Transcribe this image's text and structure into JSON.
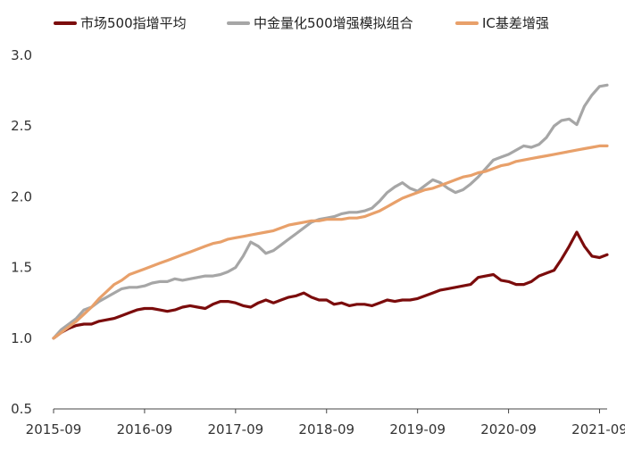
{
  "chart_data": {
    "type": "line",
    "title": "",
    "xlabel": "",
    "ylabel": "",
    "ylim": [
      0.5,
      3.0
    ],
    "yticks": [
      "0.5",
      "1.0",
      "1.5",
      "2.0",
      "2.5",
      "3.0"
    ],
    "xlim": [
      "2015-09",
      "2021-10"
    ],
    "xticks": [
      "2015-09",
      "2016-09",
      "2017-09",
      "2018-09",
      "2019-09",
      "2020-09",
      "2021-09"
    ],
    "grid": false,
    "legend": "top",
    "series": [
      {
        "name": "市场500指增平均",
        "color": "#7b0c0c",
        "points": [
          [
            "2015-09",
            1.0
          ],
          [
            "2015-10",
            1.04
          ],
          [
            "2015-11",
            1.07
          ],
          [
            "2015-12",
            1.09
          ],
          [
            "2016-01",
            1.1
          ],
          [
            "2016-02",
            1.1
          ],
          [
            "2016-03",
            1.12
          ],
          [
            "2016-04",
            1.13
          ],
          [
            "2016-05",
            1.14
          ],
          [
            "2016-06",
            1.16
          ],
          [
            "2016-07",
            1.18
          ],
          [
            "2016-08",
            1.2
          ],
          [
            "2016-09",
            1.21
          ],
          [
            "2016-10",
            1.21
          ],
          [
            "2016-11",
            1.2
          ],
          [
            "2016-12",
            1.19
          ],
          [
            "2017-01",
            1.2
          ],
          [
            "2017-02",
            1.22
          ],
          [
            "2017-03",
            1.23
          ],
          [
            "2017-04",
            1.22
          ],
          [
            "2017-05",
            1.21
          ],
          [
            "2017-06",
            1.24
          ],
          [
            "2017-07",
            1.26
          ],
          [
            "2017-08",
            1.26
          ],
          [
            "2017-09",
            1.25
          ],
          [
            "2017-10",
            1.23
          ],
          [
            "2017-11",
            1.22
          ],
          [
            "2017-12",
            1.25
          ],
          [
            "2018-01",
            1.27
          ],
          [
            "2018-02",
            1.25
          ],
          [
            "2018-03",
            1.27
          ],
          [
            "2018-04",
            1.29
          ],
          [
            "2018-05",
            1.3
          ],
          [
            "2018-06",
            1.32
          ],
          [
            "2018-07",
            1.29
          ],
          [
            "2018-08",
            1.27
          ],
          [
            "2018-09",
            1.27
          ],
          [
            "2018-10",
            1.24
          ],
          [
            "2018-11",
            1.25
          ],
          [
            "2018-12",
            1.23
          ],
          [
            "2019-01",
            1.24
          ],
          [
            "2019-02",
            1.24
          ],
          [
            "2019-03",
            1.23
          ],
          [
            "2019-04",
            1.25
          ],
          [
            "2019-05",
            1.27
          ],
          [
            "2019-06",
            1.26
          ],
          [
            "2019-07",
            1.27
          ],
          [
            "2019-08",
            1.27
          ],
          [
            "2019-09",
            1.28
          ],
          [
            "2019-10",
            1.3
          ],
          [
            "2019-11",
            1.32
          ],
          [
            "2019-12",
            1.34
          ],
          [
            "2020-01",
            1.35
          ],
          [
            "2020-02",
            1.36
          ],
          [
            "2020-03",
            1.37
          ],
          [
            "2020-04",
            1.38
          ],
          [
            "2020-05",
            1.43
          ],
          [
            "2020-06",
            1.44
          ],
          [
            "2020-07",
            1.45
          ],
          [
            "2020-08",
            1.41
          ],
          [
            "2020-09",
            1.4
          ],
          [
            "2020-10",
            1.38
          ],
          [
            "2020-11",
            1.38
          ],
          [
            "2020-12",
            1.4
          ],
          [
            "2021-01",
            1.44
          ],
          [
            "2021-02",
            1.46
          ],
          [
            "2021-03",
            1.48
          ],
          [
            "2021-04",
            1.56
          ],
          [
            "2021-05",
            1.65
          ],
          [
            "2021-06",
            1.75
          ],
          [
            "2021-07",
            1.65
          ],
          [
            "2021-08",
            1.58
          ],
          [
            "2021-09",
            1.57
          ],
          [
            "2021-10",
            1.59
          ]
        ]
      },
      {
        "name": "中金量化500增强模拟组合",
        "color": "#a6a6a6",
        "points": [
          [
            "2015-09",
            1.0
          ],
          [
            "2015-10",
            1.06
          ],
          [
            "2015-11",
            1.1
          ],
          [
            "2015-12",
            1.14
          ],
          [
            "2016-01",
            1.2
          ],
          [
            "2016-02",
            1.22
          ],
          [
            "2016-03",
            1.26
          ],
          [
            "2016-04",
            1.29
          ],
          [
            "2016-05",
            1.32
          ],
          [
            "2016-06",
            1.35
          ],
          [
            "2016-07",
            1.36
          ],
          [
            "2016-08",
            1.36
          ],
          [
            "2016-09",
            1.37
          ],
          [
            "2016-10",
            1.39
          ],
          [
            "2016-11",
            1.4
          ],
          [
            "2016-12",
            1.4
          ],
          [
            "2017-01",
            1.42
          ],
          [
            "2017-02",
            1.41
          ],
          [
            "2017-03",
            1.42
          ],
          [
            "2017-04",
            1.43
          ],
          [
            "2017-05",
            1.44
          ],
          [
            "2017-06",
            1.44
          ],
          [
            "2017-07",
            1.45
          ],
          [
            "2017-08",
            1.47
          ],
          [
            "2017-09",
            1.5
          ],
          [
            "2017-10",
            1.58
          ],
          [
            "2017-11",
            1.68
          ],
          [
            "2017-12",
            1.65
          ],
          [
            "2018-01",
            1.6
          ],
          [
            "2018-02",
            1.62
          ],
          [
            "2018-03",
            1.66
          ],
          [
            "2018-04",
            1.7
          ],
          [
            "2018-05",
            1.74
          ],
          [
            "2018-06",
            1.78
          ],
          [
            "2018-07",
            1.82
          ],
          [
            "2018-08",
            1.84
          ],
          [
            "2018-09",
            1.85
          ],
          [
            "2018-10",
            1.86
          ],
          [
            "2018-11",
            1.88
          ],
          [
            "2018-12",
            1.89
          ],
          [
            "2019-01",
            1.89
          ],
          [
            "2019-02",
            1.9
          ],
          [
            "2019-03",
            1.92
          ],
          [
            "2019-04",
            1.97
          ],
          [
            "2019-05",
            2.03
          ],
          [
            "2019-06",
            2.07
          ],
          [
            "2019-07",
            2.1
          ],
          [
            "2019-08",
            2.06
          ],
          [
            "2019-09",
            2.04
          ],
          [
            "2019-10",
            2.08
          ],
          [
            "2019-11",
            2.12
          ],
          [
            "2019-12",
            2.1
          ],
          [
            "2020-01",
            2.06
          ],
          [
            "2020-02",
            2.03
          ],
          [
            "2020-03",
            2.05
          ],
          [
            "2020-04",
            2.09
          ],
          [
            "2020-05",
            2.14
          ],
          [
            "2020-06",
            2.2
          ],
          [
            "2020-07",
            2.26
          ],
          [
            "2020-08",
            2.28
          ],
          [
            "2020-09",
            2.3
          ],
          [
            "2020-10",
            2.33
          ],
          [
            "2020-11",
            2.36
          ],
          [
            "2020-12",
            2.35
          ],
          [
            "2021-01",
            2.37
          ],
          [
            "2021-02",
            2.42
          ],
          [
            "2021-03",
            2.5
          ],
          [
            "2021-04",
            2.54
          ],
          [
            "2021-05",
            2.55
          ],
          [
            "2021-06",
            2.51
          ],
          [
            "2021-07",
            2.64
          ],
          [
            "2021-08",
            2.72
          ],
          [
            "2021-09",
            2.78
          ],
          [
            "2021-10",
            2.79
          ]
        ]
      },
      {
        "name": "IC基差增强",
        "color": "#e8a06a",
        "points": [
          [
            "2015-09",
            1.0
          ],
          [
            "2015-10",
            1.04
          ],
          [
            "2015-11",
            1.08
          ],
          [
            "2015-12",
            1.12
          ],
          [
            "2016-01",
            1.17
          ],
          [
            "2016-02",
            1.22
          ],
          [
            "2016-03",
            1.28
          ],
          [
            "2016-04",
            1.33
          ],
          [
            "2016-05",
            1.38
          ],
          [
            "2016-06",
            1.41
          ],
          [
            "2016-07",
            1.45
          ],
          [
            "2016-08",
            1.47
          ],
          [
            "2016-09",
            1.49
          ],
          [
            "2016-10",
            1.51
          ],
          [
            "2016-11",
            1.53
          ],
          [
            "2016-12",
            1.55
          ],
          [
            "2017-01",
            1.57
          ],
          [
            "2017-02",
            1.59
          ],
          [
            "2017-03",
            1.61
          ],
          [
            "2017-04",
            1.63
          ],
          [
            "2017-05",
            1.65
          ],
          [
            "2017-06",
            1.67
          ],
          [
            "2017-07",
            1.68
          ],
          [
            "2017-08",
            1.7
          ],
          [
            "2017-09",
            1.71
          ],
          [
            "2017-10",
            1.72
          ],
          [
            "2017-11",
            1.73
          ],
          [
            "2017-12",
            1.74
          ],
          [
            "2018-01",
            1.75
          ],
          [
            "2018-02",
            1.76
          ],
          [
            "2018-03",
            1.78
          ],
          [
            "2018-04",
            1.8
          ],
          [
            "2018-05",
            1.81
          ],
          [
            "2018-06",
            1.82
          ],
          [
            "2018-07",
            1.83
          ],
          [
            "2018-08",
            1.83
          ],
          [
            "2018-09",
            1.84
          ],
          [
            "2018-10",
            1.84
          ],
          [
            "2018-11",
            1.84
          ],
          [
            "2018-12",
            1.85
          ],
          [
            "2019-01",
            1.85
          ],
          [
            "2019-02",
            1.86
          ],
          [
            "2019-03",
            1.88
          ],
          [
            "2019-04",
            1.9
          ],
          [
            "2019-05",
            1.93
          ],
          [
            "2019-06",
            1.96
          ],
          [
            "2019-07",
            1.99
          ],
          [
            "2019-08",
            2.01
          ],
          [
            "2019-09",
            2.03
          ],
          [
            "2019-10",
            2.05
          ],
          [
            "2019-11",
            2.06
          ],
          [
            "2019-12",
            2.08
          ],
          [
            "2020-01",
            2.1
          ],
          [
            "2020-02",
            2.12
          ],
          [
            "2020-03",
            2.14
          ],
          [
            "2020-04",
            2.15
          ],
          [
            "2020-05",
            2.17
          ],
          [
            "2020-06",
            2.18
          ],
          [
            "2020-07",
            2.2
          ],
          [
            "2020-08",
            2.22
          ],
          [
            "2020-09",
            2.23
          ],
          [
            "2020-10",
            2.25
          ],
          [
            "2020-11",
            2.26
          ],
          [
            "2020-12",
            2.27
          ],
          [
            "2021-01",
            2.28
          ],
          [
            "2021-02",
            2.29
          ],
          [
            "2021-03",
            2.3
          ],
          [
            "2021-04",
            2.31
          ],
          [
            "2021-05",
            2.32
          ],
          [
            "2021-06",
            2.33
          ],
          [
            "2021-07",
            2.34
          ],
          [
            "2021-08",
            2.35
          ],
          [
            "2021-09",
            2.36
          ],
          [
            "2021-10",
            2.36
          ]
        ]
      }
    ]
  }
}
